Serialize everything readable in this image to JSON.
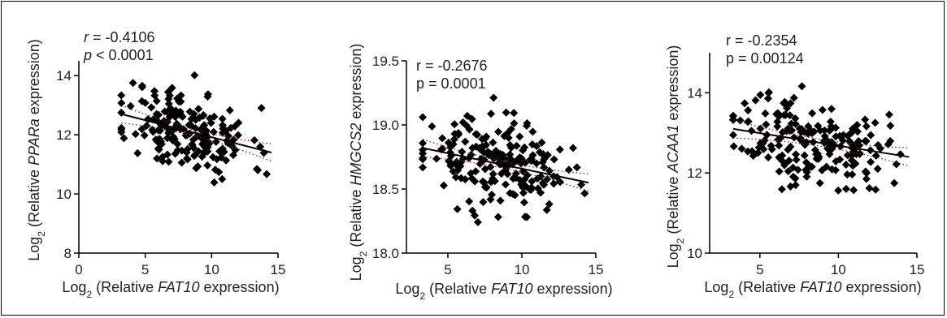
{
  "chart_data": [
    {
      "type": "scatter",
      "stats": {
        "r_label": "r",
        "r_value": " = -0.4106",
        "p_label": "p",
        "p_value": " < 0.0001",
        "stats_italic": true
      },
      "xlabel": {
        "prefix": "Log",
        "sub": "2",
        "pre": " (Relative ",
        "gene": "FAT10",
        "post": " expression)"
      },
      "ylabel": {
        "prefix": "Log",
        "sub": "2",
        "pre": " (Relative ",
        "gene": "PPARa",
        "post": " expression)"
      },
      "xlim": [
        0,
        15
      ],
      "ylim": [
        8,
        14.5
      ],
      "xticks": [
        "0",
        "5",
        "10",
        "15"
      ],
      "yticks": [
        "8",
        "10",
        "12",
        "14"
      ],
      "fit": {
        "x": [
          3.2,
          14.5
        ],
        "y": [
          12.7,
          11.4
        ]
      },
      "seed": 11,
      "n": 190
    },
    {
      "type": "scatter",
      "stats": {
        "r_label": "r",
        "r_value": " = -0.2676",
        "p_label": "p",
        "p_value": " = 0.0001",
        "stats_italic": false
      },
      "xlabel": {
        "prefix": "Log",
        "sub": "2",
        "pre": " (Relative ",
        "gene": "FAT10",
        "post": " expression)"
      },
      "ylabel": {
        "prefix": "Log",
        "sub": "2",
        "pre": " (Relative ",
        "gene": "HMGCS2",
        "post": " expression)"
      },
      "xlim": [
        2.2,
        15
      ],
      "ylim": [
        18.0,
        19.5
      ],
      "xticks": [
        "5",
        "10",
        "15"
      ],
      "yticks": [
        "18.0",
        "18.5",
        "19.0",
        "19.5"
      ],
      "fit": {
        "x": [
          3.3,
          14.5
        ],
        "y": [
          18.82,
          18.55
        ]
      },
      "seed": 23,
      "n": 200
    },
    {
      "type": "scatter",
      "stats": {
        "r_label": "r",
        "r_value": " = -0.2354",
        "p_label": "p",
        "p_value": " = 0.00124",
        "stats_italic": false
      },
      "xlabel": {
        "prefix": "Log",
        "sub": "2",
        "pre": " (Relative ",
        "gene": "FAT10",
        "post": " expression)"
      },
      "ylabel": {
        "prefix": "Log",
        "sub": "2",
        "pre": " (Relative ",
        "gene": "ACAA1",
        "post": " expression)"
      },
      "xlim": [
        1.8,
        15
      ],
      "ylim": [
        10,
        15
      ],
      "xticks": [
        "5",
        "10",
        "15"
      ],
      "yticks": [
        "10",
        "12",
        "14"
      ],
      "fit": {
        "x": [
          3.3,
          14.5
        ],
        "y": [
          13.1,
          12.4
        ]
      },
      "seed": 37,
      "n": 200
    }
  ]
}
